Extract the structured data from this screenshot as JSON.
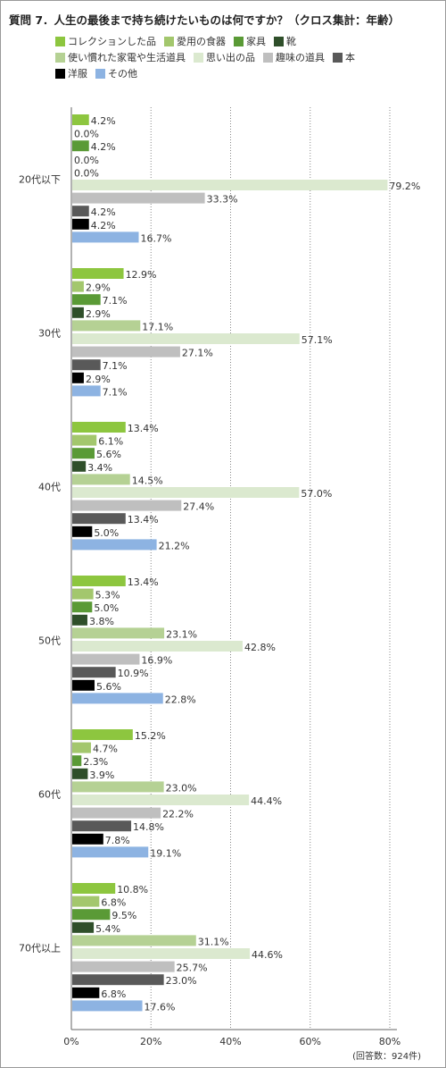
{
  "chart_data": {
    "type": "bar",
    "orientation": "horizontal",
    "title": "質問 7．人生の最後まで持ち続けたいものは何ですか？（クロス集計：年齢）",
    "categories": [
      "20代以下",
      "30代",
      "40代",
      "50代",
      "60代",
      "70代以上"
    ],
    "series": [
      {
        "name": "コレクションした品",
        "color": "#8dc63f",
        "values": [
          4.2,
          12.9,
          13.4,
          13.4,
          15.2,
          10.8
        ]
      },
      {
        "name": "愛用の食器",
        "color": "#a3c76d",
        "values": [
          0.0,
          2.9,
          6.1,
          5.3,
          4.7,
          6.8
        ]
      },
      {
        "name": "家具",
        "color": "#5a9a36",
        "values": [
          4.2,
          7.1,
          5.6,
          5.0,
          2.3,
          9.5
        ]
      },
      {
        "name": "靴",
        "color": "#2f4f2a",
        "values": [
          0.0,
          2.9,
          3.4,
          3.8,
          3.9,
          5.4
        ]
      },
      {
        "name": "使い慣れた家電や生活道具",
        "color": "#b5d194",
        "values": [
          0.0,
          17.1,
          14.5,
          23.1,
          23.0,
          31.1
        ]
      },
      {
        "name": "思い出の品",
        "color": "#dbe9cf",
        "values": [
          79.2,
          57.1,
          57.0,
          42.8,
          44.4,
          44.6
        ]
      },
      {
        "name": "趣味の道具",
        "color": "#bfbfbf",
        "values": [
          33.3,
          27.1,
          27.4,
          16.9,
          22.2,
          25.7
        ]
      },
      {
        "name": "本",
        "color": "#595959",
        "values": [
          4.2,
          7.1,
          13.4,
          10.9,
          14.8,
          23.0
        ]
      },
      {
        "name": "洋服",
        "color": "#000000",
        "values": [
          4.2,
          2.9,
          5.0,
          5.6,
          7.8,
          6.8
        ]
      },
      {
        "name": "その他",
        "color": "#8db3e2",
        "values": [
          16.7,
          7.1,
          21.2,
          22.8,
          19.1,
          17.6
        ]
      }
    ],
    "xlim": [
      0,
      80
    ],
    "x_ticks": [
      "0%",
      "20%",
      "40%",
      "60%",
      "80%"
    ],
    "grid": true,
    "legend_placement": "top",
    "value_suffix": "%",
    "footnote": "(回答数：924件)"
  }
}
